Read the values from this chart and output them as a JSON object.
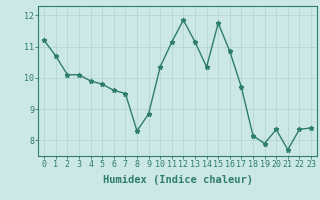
{
  "x": [
    0,
    1,
    2,
    3,
    4,
    5,
    6,
    7,
    8,
    9,
    10,
    11,
    12,
    13,
    14,
    15,
    16,
    17,
    18,
    19,
    20,
    21,
    22,
    23
  ],
  "y": [
    11.2,
    10.7,
    10.1,
    10.1,
    9.9,
    9.8,
    9.6,
    9.5,
    8.3,
    8.85,
    10.35,
    11.15,
    11.85,
    11.15,
    10.35,
    11.75,
    10.85,
    9.7,
    8.15,
    7.9,
    8.35,
    7.7,
    8.35,
    8.4
  ],
  "ylim": [
    7.5,
    12.3
  ],
  "yticks": [
    8,
    9,
    10,
    11,
    12
  ],
  "xlabel": "Humidex (Indice chaleur)",
  "line_color": "#2e7d6e",
  "marker": "*",
  "bg_color": "#cce8e4",
  "grid_color": "#b8d8d4",
  "tick_color": "#2e7d6e",
  "tick_fontsize": 6.0,
  "xlabel_fontsize": 7.5
}
